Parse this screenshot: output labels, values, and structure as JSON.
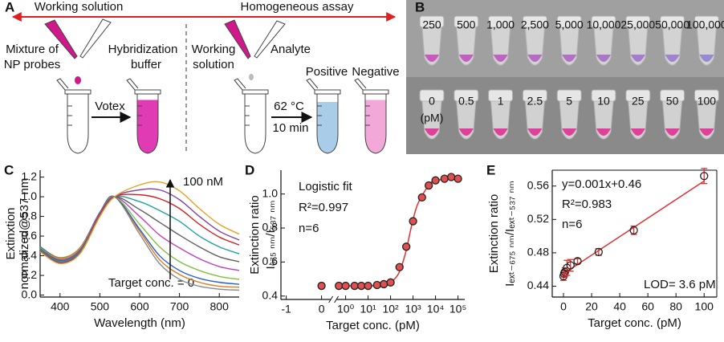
{
  "panel_a": {
    "label": "A",
    "left_stage": "Working solution",
    "right_stage": "Homogeneous assay",
    "mixture_lines": [
      "Mixture of",
      "NP probes"
    ],
    "buffer_lines": [
      "Hybridization",
      "buffer"
    ],
    "working_lines": [
      "Working",
      "solution"
    ],
    "analyte": "Analyte",
    "step1": "Votex",
    "step2_lines": [
      "62 °C",
      "10 min"
    ],
    "positive": "Positive",
    "negative": "Negative"
  },
  "panel_b": {
    "label": "B",
    "top_row": [
      "250",
      "500",
      "1,000",
      "2,500",
      "5,000",
      "10,000",
      "25,000",
      "50,000",
      "100,000"
    ],
    "bottom_row": [
      "0",
      "0.5",
      "1",
      "2.5",
      "5",
      "10",
      "25",
      "50",
      "100"
    ],
    "unit": "(pM)"
  },
  "chart_data": [
    {
      "label": "C",
      "type": "line",
      "ylabel_lines": [
        "Extinxtion",
        "normalized@537 nm"
      ],
      "xlabel": "Wavelength (nm)",
      "annotations": [
        "100 nM",
        "Target conc. = 0"
      ],
      "x": [
        350,
        400,
        450,
        500,
        537,
        600,
        650,
        700,
        750,
        800,
        850
      ],
      "series": [
        {
          "color": "#8a8a8a",
          "values": [
            0.49,
            0.38,
            0.48,
            0.84,
            1,
            0.62,
            0.32,
            0.16,
            0.09,
            0.06,
            0.05
          ]
        },
        {
          "color": "#e07a20",
          "values": [
            0.49,
            0.38,
            0.48,
            0.84,
            1,
            0.65,
            0.36,
            0.21,
            0.13,
            0.09,
            0.08
          ]
        },
        {
          "color": "#2060d0",
          "values": [
            0.49,
            0.37,
            0.47,
            0.84,
            1,
            0.67,
            0.4,
            0.25,
            0.17,
            0.13,
            0.11
          ]
        },
        {
          "color": "#80c040",
          "values": [
            0.48,
            0.37,
            0.47,
            0.83,
            1,
            0.72,
            0.49,
            0.34,
            0.25,
            0.19,
            0.16
          ]
        },
        {
          "color": "#c040c0",
          "values": [
            0.47,
            0.36,
            0.46,
            0.83,
            1,
            0.8,
            0.61,
            0.48,
            0.37,
            0.29,
            0.25
          ]
        },
        {
          "color": "#606060",
          "values": [
            0.47,
            0.35,
            0.45,
            0.82,
            1,
            0.87,
            0.74,
            0.61,
            0.49,
            0.39,
            0.34
          ]
        },
        {
          "color": "#20a0a0",
          "values": [
            0.46,
            0.34,
            0.44,
            0.81,
            1,
            0.95,
            0.86,
            0.75,
            0.6,
            0.49,
            0.42
          ]
        },
        {
          "color": "#d02020",
          "values": [
            0.45,
            0.33,
            0.43,
            0.81,
            1,
            1.02,
            0.98,
            0.88,
            0.72,
            0.59,
            0.51
          ]
        },
        {
          "color": "#8040a0",
          "values": [
            0.45,
            0.33,
            0.43,
            0.8,
            1,
            1.07,
            1.07,
            0.97,
            0.8,
            0.65,
            0.56
          ]
        },
        {
          "color": "#e8a020",
          "values": [
            0.44,
            0.32,
            0.42,
            0.8,
            1,
            1.12,
            1.15,
            1.06,
            0.88,
            0.72,
            0.62
          ]
        }
      ],
      "xlim": [
        350,
        850
      ],
      "xticks": [
        400,
        500,
        600,
        700,
        800
      ],
      "ylim": [
        -0.02,
        1.27
      ],
      "yticks": [
        {
          "value": 0,
          "label": "0.0"
        },
        0.2,
        0.4,
        0.6,
        0.8,
        {
          "value": 1,
          "label": "1.0"
        },
        1.2
      ]
    },
    {
      "label": "D",
      "type": "scatter",
      "xscale": "broken-log",
      "ylabel_lines": [
        "Extinction ratio",
        "I₆₇₅ ₙₘ/I₅₃₇ ₙₘ"
      ],
      "xlabel": "Target conc. (pM)",
      "annotations": [
        "Logistic fit",
        "R²=0.997",
        "n=6"
      ],
      "x": [
        0,
        0.5,
        1,
        2.5,
        5,
        10,
        25,
        50,
        100,
        250,
        500,
        1000,
        2500,
        5000,
        10000,
        25000,
        50000,
        100000
      ],
      "values": [
        0.46,
        0.46,
        0.46,
        0.46,
        0.46,
        0.46,
        0.465,
        0.47,
        0.48,
        0.57,
        0.69,
        0.84,
        0.98,
        1.05,
        1.08,
        1.09,
        1.1,
        1.09
      ],
      "color": "#e03030",
      "marker_fill": "#e05050",
      "fit": {
        "x": [
          0.5,
          1,
          10,
          50,
          100,
          200,
          300,
          500,
          700,
          1000,
          1500,
          2500,
          5000,
          10000,
          100000
        ],
        "values": [
          0.46,
          0.46,
          0.46,
          0.465,
          0.48,
          0.52,
          0.57,
          0.67,
          0.76,
          0.85,
          0.93,
          0.99,
          1.05,
          1.08,
          1.09
        ]
      },
      "xlim": [
        -1.15,
        200000
      ],
      "xticks": [
        -1,
        0,
        {
          "value": 1,
          "label": "10⁰"
        },
        {
          "value": 10,
          "label": "10¹"
        },
        {
          "value": 100,
          "label": "10²"
        },
        {
          "value": 1000,
          "label": "10³"
        },
        {
          "value": 10000,
          "label": "10⁴"
        },
        {
          "value": 100000,
          "label": "10⁵"
        }
      ],
      "ylim": [
        0.38,
        1.14
      ],
      "yticks": [
        0.4,
        0.6,
        0.8,
        {
          "value": 1,
          "label": "1.0"
        }
      ]
    },
    {
      "label": "E",
      "type": "scatter",
      "ylabel_lines": [
        "Extinction ratio",
        "Iₑₓₜ₋₆₇₅ ₙₘ/Iₑₓₜ₋₅₃₇ ₙₘ"
      ],
      "xlabel": "Target conc. (pM)",
      "annotations": [
        "y=0.001x+0.46",
        "R²=0.983",
        "n=6",
        "LOD= 3.6 pM"
      ],
      "x": [
        0,
        0.5,
        1,
        2.5,
        5,
        10,
        25,
        50,
        100
      ],
      "values": [
        0.452,
        0.455,
        0.457,
        0.462,
        0.465,
        0.47,
        0.481,
        0.507,
        0.572
      ],
      "errors": [
        0.005,
        0.004,
        0.005,
        0.009,
        0.007,
        0.003,
        0.004,
        0.005,
        0.009
      ],
      "color": "#e03030",
      "marker_fill": "none",
      "fit": {
        "x": [
          0,
          100
        ],
        "values": [
          0.455,
          0.566
        ]
      },
      "xlim": [
        -8,
        109
      ],
      "xticks": [
        0,
        20,
        40,
        60,
        80,
        100
      ],
      "ylim": [
        0.427,
        0.579
      ],
      "yticks": [
        0.44,
        0.48,
        0.52,
        0.56
      ]
    }
  ]
}
